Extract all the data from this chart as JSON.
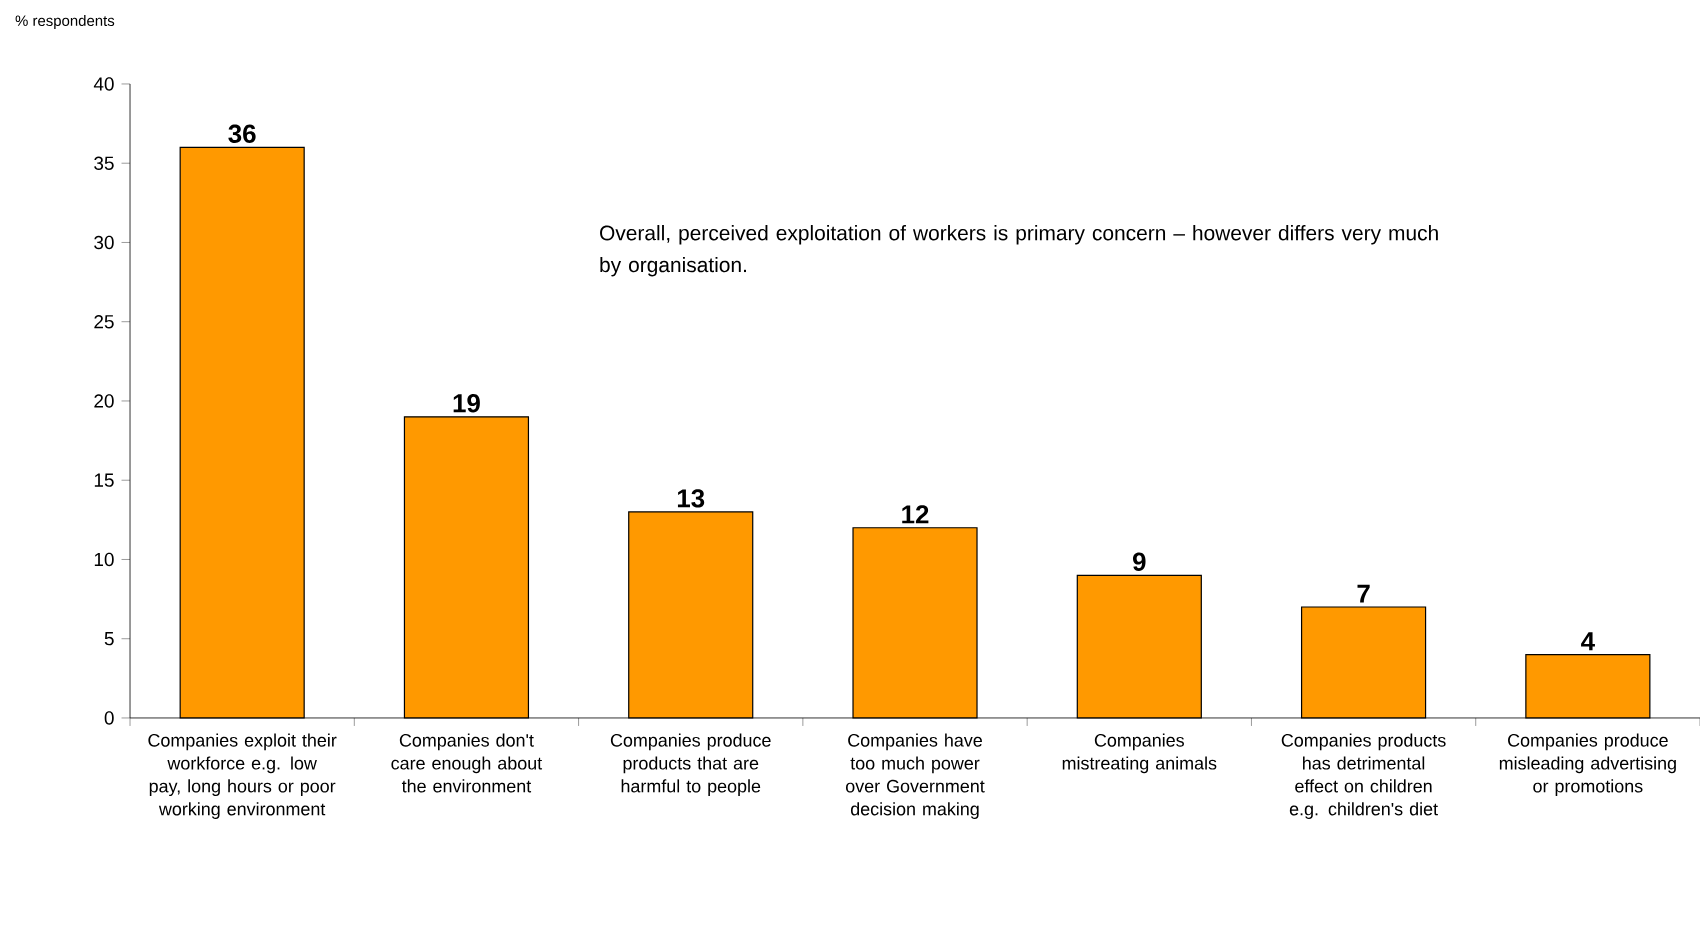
{
  "chart_data": {
    "type": "bar",
    "ylabel": "% respondents",
    "categories": [
      "Companies exploit their workforce e.g. low pay, long hours or poor working environment",
      "Companies don't care enough about the environment",
      "Companies produce products that are harmful to people",
      "Companies have too much power over Government decision making",
      "Companies mistreating animals",
      "Companies products has detrimental effect on children e.g. children's diet",
      "Companies produce misleading advertising or promotions"
    ],
    "values": [
      36,
      19,
      13,
      12,
      9,
      7,
      4
    ],
    "color": "#ff9900",
    "ylim": [
      0,
      40
    ],
    "yticks": [
      0,
      5,
      10,
      15,
      20,
      25,
      30,
      35,
      40
    ],
    "data_labels": true,
    "annotations": [
      "Overall, perceived exploitation of workers is primary concern – however differs very much by organisation."
    ]
  }
}
